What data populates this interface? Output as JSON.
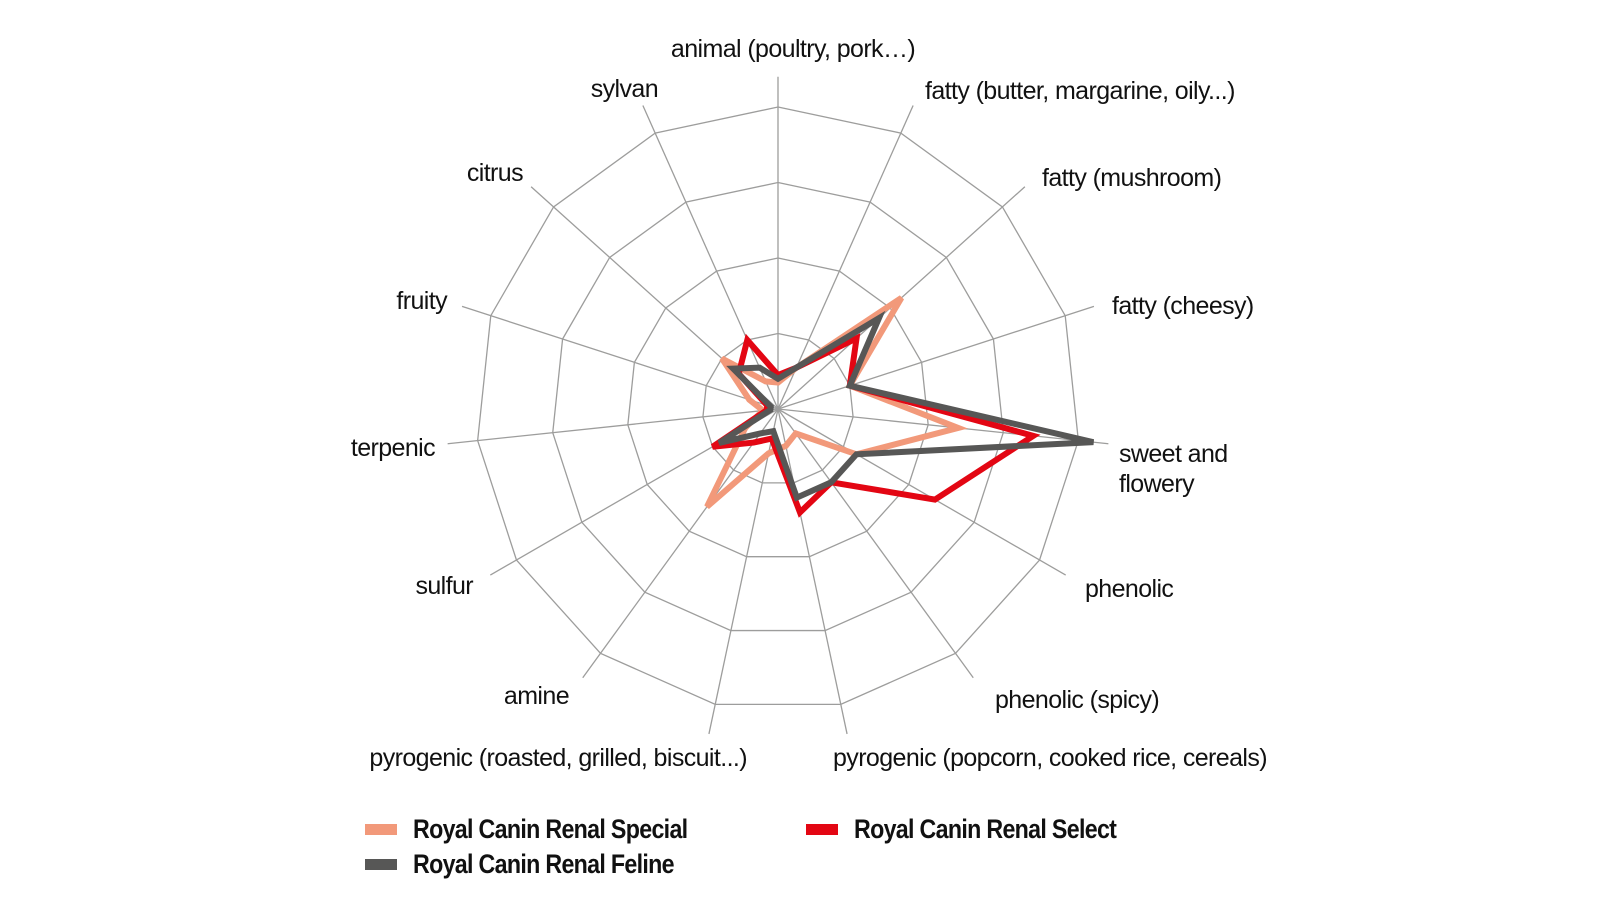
{
  "chart_data": {
    "type": "radar",
    "title": "",
    "axes": [
      "animal (poultry, pork…)",
      "fatty (butter, margarine, oily...)",
      "fatty (mushroom)",
      "fatty (cheesy)",
      "sweet and flowery",
      "phenolic",
      "phenolic (spicy)",
      "pyrogenic (popcorn, cooked rice, cereals)",
      "pyrogenic (roasted, grilled, biscuit...)",
      "amine",
      "sulfur",
      "terpenic",
      "fruity",
      "citrus",
      "sylvan"
    ],
    "rings": 4,
    "rmax": 4.4,
    "grid": true,
    "tick_labels": false,
    "series": [
      {
        "name": "Royal Canin Renal Special",
        "color": "#f2997a",
        "values": [
          0.35,
          0.6,
          2.2,
          1.0,
          2.4,
          1.2,
          0.4,
          0.5,
          0.6,
          1.6,
          0.5,
          0.2,
          0.4,
          1.0,
          0.4
        ]
      },
      {
        "name": "Royal Canin Renal Select",
        "color": "#e30613",
        "values": [
          0.45,
          0.6,
          1.4,
          1.0,
          3.4,
          2.4,
          1.2,
          1.4,
          0.4,
          0.55,
          1.0,
          0.15,
          0.15,
          0.7,
          1.0
        ]
      },
      {
        "name": "Royal Canin Renal Feline",
        "color": "#575756",
        "values": [
          0.4,
          0.6,
          1.8,
          1.0,
          4.2,
          1.2,
          1.2,
          1.2,
          0.3,
          0.4,
          0.9,
          0.1,
          0.1,
          0.8,
          0.6
        ]
      }
    ],
    "legend_position": "bottom"
  },
  "labels": {
    "animal": "animal (poultry, pork…)",
    "fatty_butter": "fatty (butter, margarine, oily...)",
    "fatty_mushroom": "fatty (mushroom)",
    "fatty_cheesy": "fatty (cheesy)",
    "sweet_line1": "sweet and",
    "sweet_line2": "flowery",
    "phenolic": "phenolic",
    "phenolic_spicy": "phenolic (spicy)",
    "pyrogenic_popcorn": "pyrogenic (popcorn, cooked rice, cereals)",
    "pyrogenic_roasted": "pyrogenic (roasted, grilled, biscuit...)",
    "amine": "amine",
    "sulfur": "sulfur",
    "terpenic": "terpenic",
    "fruity": "fruity",
    "citrus": "citrus",
    "sylvan": "sylvan"
  },
  "legend": {
    "special": {
      "label": "Royal Canin Renal Special",
      "color": "#f2997a"
    },
    "feline": {
      "label": "Royal Canin Renal Feline",
      "color": "#575756"
    },
    "select": {
      "label": "Royal Canin Renal Select",
      "color": "#e30613"
    }
  }
}
